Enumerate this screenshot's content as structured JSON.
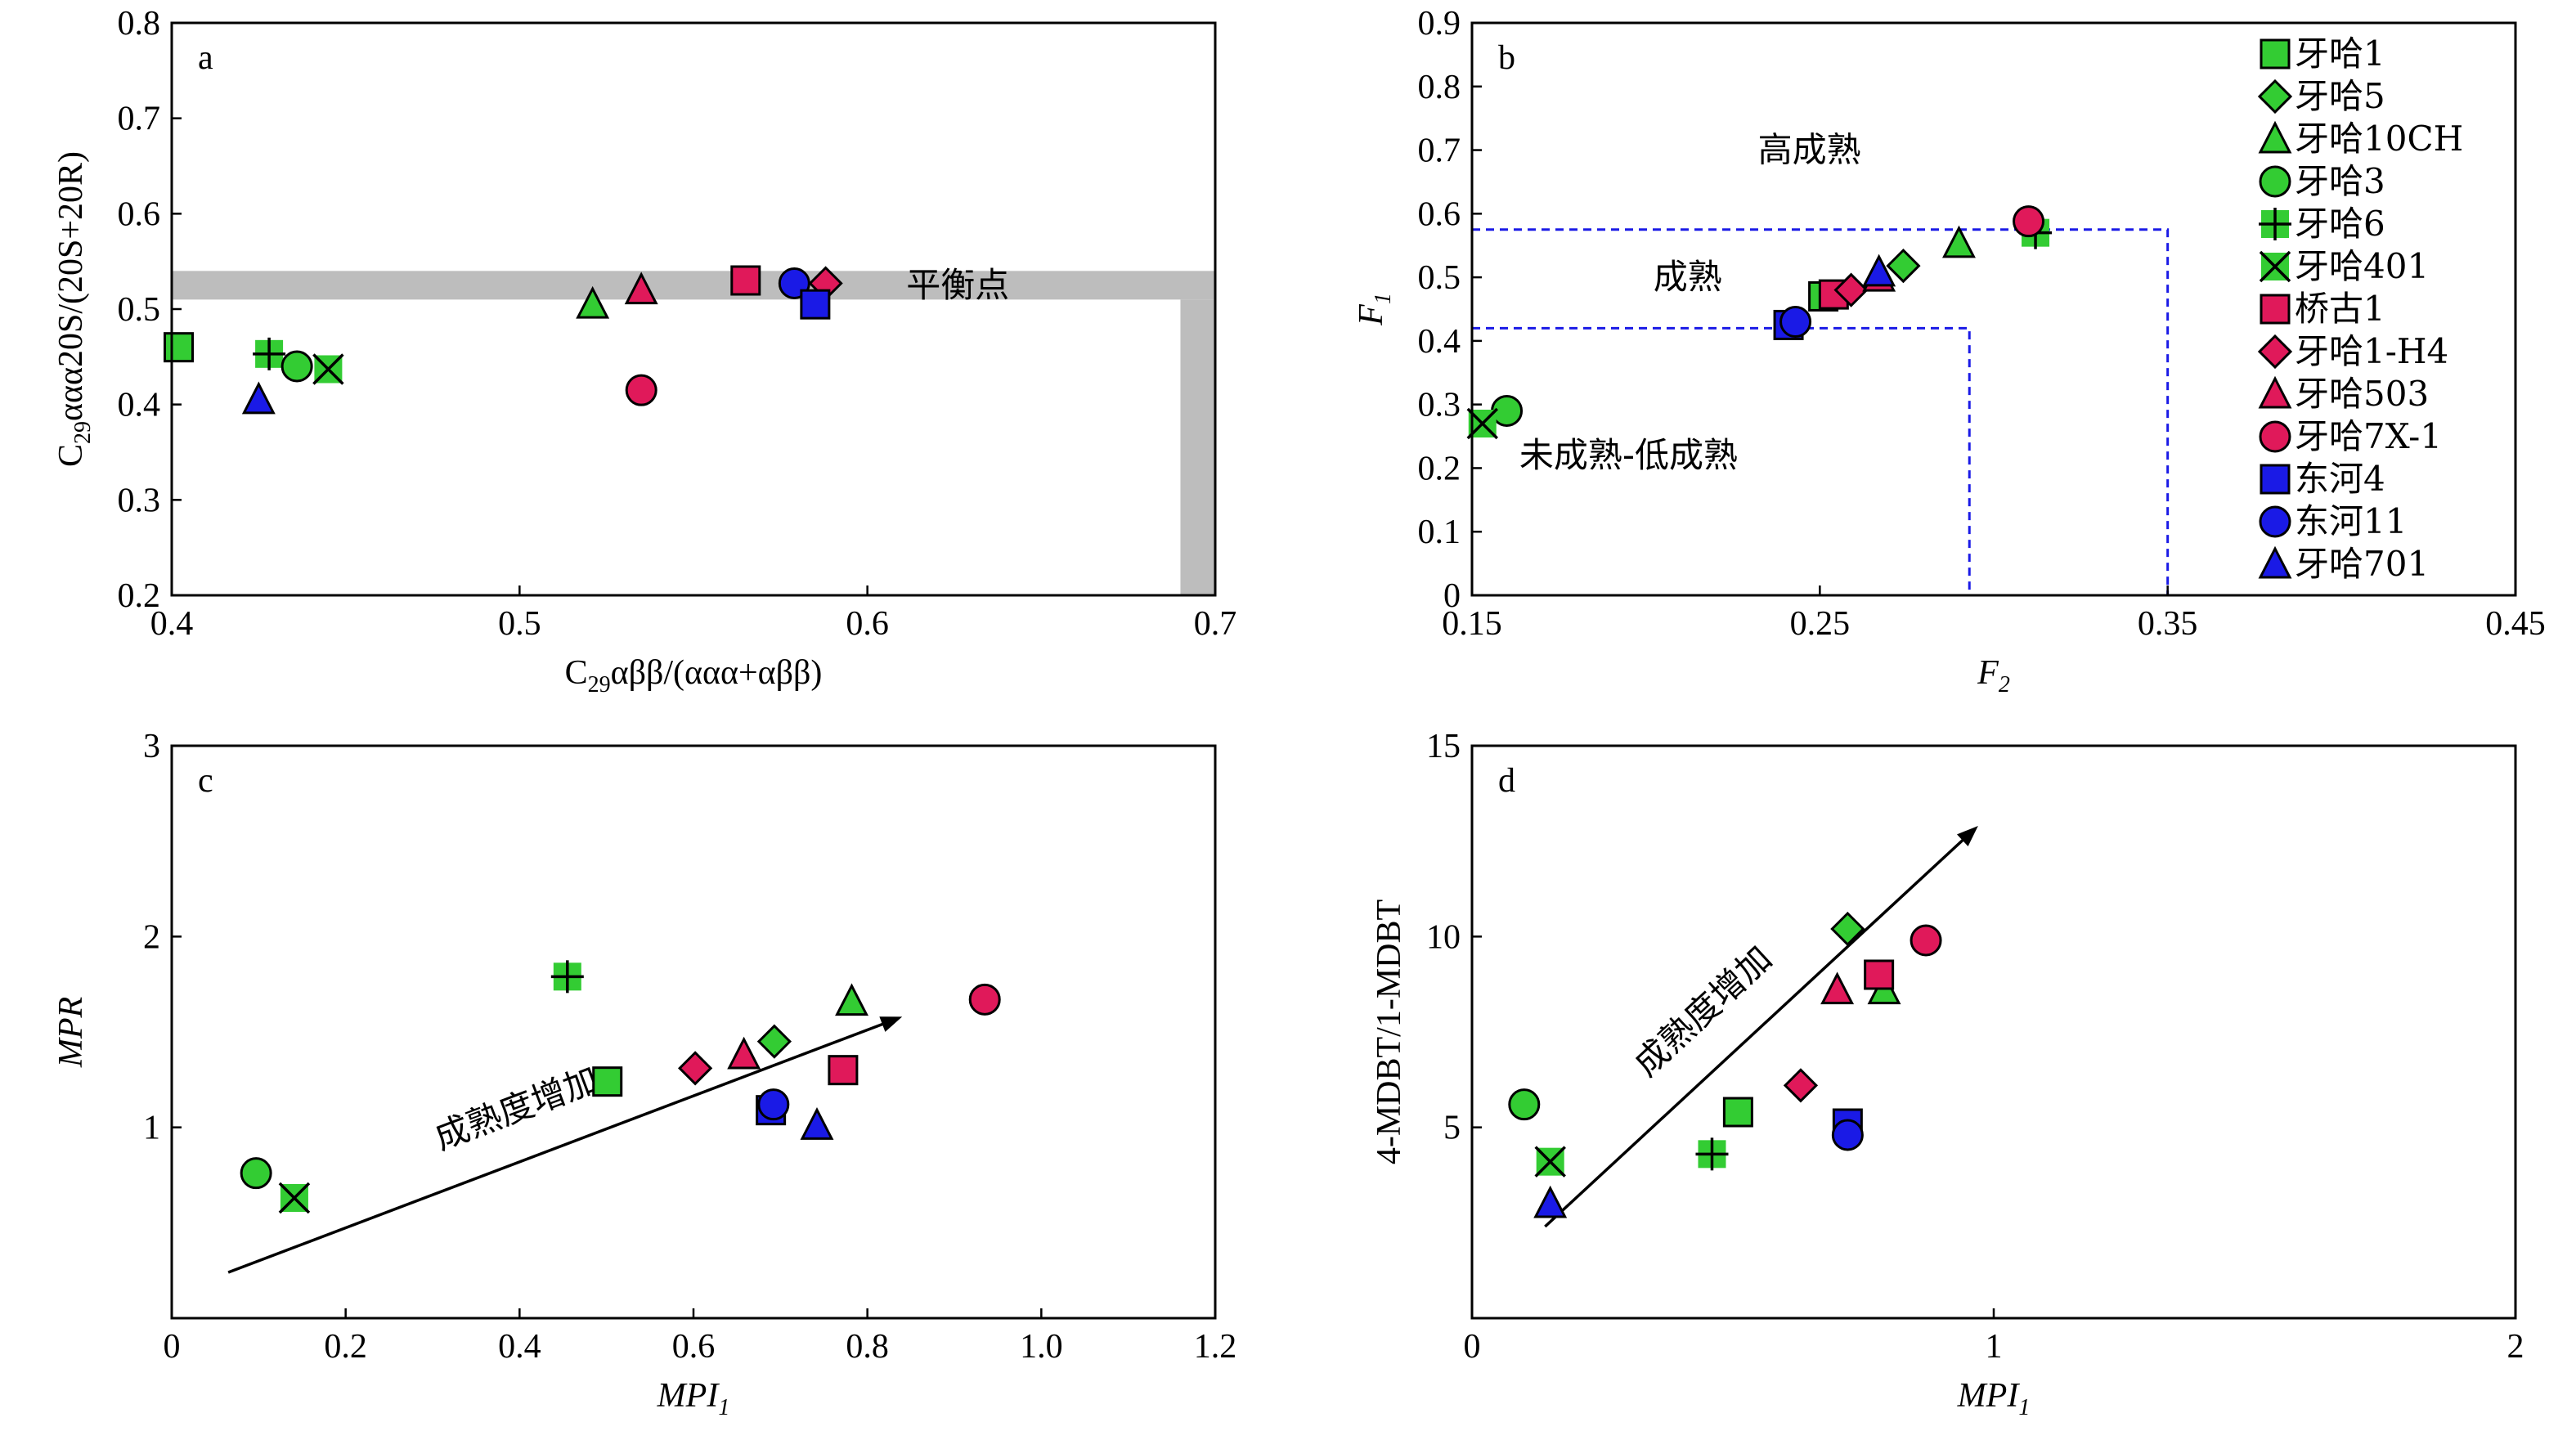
{
  "series": [
    {
      "name": "牙哈1",
      "shape": "square",
      "color": "#33cc33"
    },
    {
      "name": "牙哈5",
      "shape": "diamond",
      "color": "#33cc33"
    },
    {
      "name": "牙哈10CH",
      "shape": "triangle",
      "color": "#33cc33"
    },
    {
      "name": "牙哈3",
      "shape": "circle",
      "color": "#33cc33"
    },
    {
      "name": "牙哈6",
      "shape": "plus",
      "color": "#33cc33"
    },
    {
      "name": "牙哈401",
      "shape": "cross",
      "color": "#33cc33"
    },
    {
      "name": "桥古1",
      "shape": "square",
      "color": "#e0195a"
    },
    {
      "name": "牙哈1-H4",
      "shape": "diamond",
      "color": "#e0195a"
    },
    {
      "name": "牙哈503",
      "shape": "triangle",
      "color": "#e0195a"
    },
    {
      "name": "牙哈7X-1",
      "shape": "circle",
      "color": "#e0195a"
    },
    {
      "name": "东河4",
      "shape": "square",
      "color": "#1a1ae6"
    },
    {
      "name": "东河11",
      "shape": "circle",
      "color": "#1a1ae6"
    },
    {
      "name": "牙哈701",
      "shape": "triangle",
      "color": "#1a1ae6"
    }
  ],
  "chart_data": [
    {
      "type": "scatter",
      "letter": "a",
      "xlabel": {
        "prefix": "C",
        "sub": "29",
        "rest": "αββ/(ααα+αββ)"
      },
      "ylabel": {
        "prefix": "C",
        "sub": "29",
        "rest": "ααα20S/(20S+20R)"
      },
      "xlim": [
        0.4,
        0.7
      ],
      "ylim": [
        0.2,
        0.8
      ],
      "xticks": [
        0.4,
        0.5,
        0.6,
        0.7
      ],
      "yticks": [
        0.2,
        0.3,
        0.4,
        0.5,
        0.6,
        0.7,
        0.8
      ],
      "xtick_labels": [
        "0.4",
        "0.5",
        "0.6",
        "0.7"
      ],
      "ytick_labels": [
        "0.2",
        "0.3",
        "0.4",
        "0.5",
        "0.6",
        "0.7",
        "0.8"
      ],
      "equilibrium_band": {
        "y": [
          0.51,
          0.54
        ],
        "x": [
          0.69,
          0.7
        ],
        "label": "平衡点"
      },
      "points": [
        {
          "series": "牙哈1",
          "x": 0.402,
          "y": 0.46
        },
        {
          "series": "牙哈6",
          "x": 0.428,
          "y": 0.453
        },
        {
          "series": "牙哈3",
          "x": 0.436,
          "y": 0.44
        },
        {
          "series": "牙哈401",
          "x": 0.445,
          "y": 0.437
        },
        {
          "series": "牙哈701",
          "x": 0.425,
          "y": 0.405
        },
        {
          "series": "牙哈10CH",
          "x": 0.521,
          "y": 0.505
        },
        {
          "series": "牙哈503",
          "x": 0.535,
          "y": 0.52
        },
        {
          "series": "牙哈7X-1",
          "x": 0.535,
          "y": 0.415
        },
        {
          "series": "桥古1",
          "x": 0.565,
          "y": 0.53
        },
        {
          "series": "东河11",
          "x": 0.579,
          "y": 0.527
        },
        {
          "series": "牙哈1-H4",
          "x": 0.588,
          "y": 0.527
        },
        {
          "series": "东河4",
          "x": 0.585,
          "y": 0.505
        }
      ]
    },
    {
      "type": "scatter",
      "letter": "b",
      "xlabel": {
        "prefix": "F",
        "sub": "2",
        "rest": ""
      },
      "ylabel": {
        "prefix": "F",
        "sub": "1",
        "rest": ""
      },
      "xlim": [
        0.15,
        0.45
      ],
      "ylim": [
        0,
        0.9
      ],
      "xticks": [
        0.15,
        0.25,
        0.35,
        0.45
      ],
      "yticks": [
        0,
        0.1,
        0.2,
        0.3,
        0.4,
        0.5,
        0.6,
        0.7,
        0.8,
        0.9
      ],
      "xtick_labels": [
        "0.15",
        "0.25",
        "0.35",
        "0.45"
      ],
      "ytick_labels": [
        "0",
        "0.1",
        "0.2",
        "0.3",
        "0.4",
        "0.5",
        "0.6",
        "0.7",
        "0.8",
        "0.9"
      ],
      "zones": [
        {
          "x": 0.293,
          "y": 0.42
        },
        {
          "x": 0.35,
          "y": 0.575
        }
      ],
      "zone_labels": [
        {
          "text": "高成熟",
          "x": 0.247,
          "y": 0.7
        },
        {
          "text": "成熟",
          "x": 0.212,
          "y": 0.5
        },
        {
          "text": "未成熟-低成熟",
          "x": 0.195,
          "y": 0.22
        }
      ],
      "points": [
        {
          "series": "牙哈1",
          "x": 0.251,
          "y": 0.47
        },
        {
          "series": "牙哈5",
          "x": 0.274,
          "y": 0.518
        },
        {
          "series": "牙哈10CH",
          "x": 0.29,
          "y": 0.553
        },
        {
          "series": "牙哈3",
          "x": 0.16,
          "y": 0.29
        },
        {
          "series": "牙哈6",
          "x": 0.312,
          "y": 0.57
        },
        {
          "series": "牙哈401",
          "x": 0.153,
          "y": 0.27
        },
        {
          "series": "桥古1",
          "x": 0.254,
          "y": 0.473
        },
        {
          "series": "牙哈1-H4",
          "x": 0.259,
          "y": 0.48
        },
        {
          "series": "牙哈503",
          "x": 0.267,
          "y": 0.5
        },
        {
          "series": "牙哈7X-1",
          "x": 0.31,
          "y": 0.588
        },
        {
          "series": "东河4",
          "x": 0.241,
          "y": 0.425
        },
        {
          "series": "东河11",
          "x": 0.243,
          "y": 0.43
        },
        {
          "series": "牙哈701",
          "x": 0.267,
          "y": 0.508
        }
      ]
    },
    {
      "type": "scatter",
      "letter": "c",
      "xlabel": {
        "prefix": "MPI",
        "sub": "1",
        "rest": ""
      },
      "ylabel": {
        "prefix": "MPR",
        "sub": "",
        "rest": ""
      },
      "xlim": [
        0,
        1.2
      ],
      "ylim": [
        0,
        3
      ],
      "xticks": [
        0,
        0.2,
        0.4,
        0.6,
        0.8,
        1.0,
        1.2
      ],
      "yticks": [
        1,
        2,
        3
      ],
      "xtick_labels": [
        "0",
        "0.2",
        "0.4",
        "0.6",
        "0.8",
        "1.0",
        "1.2"
      ],
      "ytick_labels": [
        "1",
        "2",
        "3"
      ],
      "arrow": {
        "from": [
          0.065,
          0.24
        ],
        "to": [
          0.84,
          1.58
        ],
        "label": "成熟度增加"
      },
      "points": [
        {
          "series": "牙哈3",
          "x": 0.097,
          "y": 0.76
        },
        {
          "series": "牙哈401",
          "x": 0.141,
          "y": 0.63
        },
        {
          "series": "牙哈6",
          "x": 0.455,
          "y": 1.79
        },
        {
          "series": "牙哈1",
          "x": 0.501,
          "y": 1.24
        },
        {
          "series": "牙哈1-H4",
          "x": 0.602,
          "y": 1.31
        },
        {
          "series": "牙哈503",
          "x": 0.658,
          "y": 1.38
        },
        {
          "series": "牙哈5",
          "x": 0.693,
          "y": 1.45
        },
        {
          "series": "牙哈10CH",
          "x": 0.782,
          "y": 1.66
        },
        {
          "series": "东河4",
          "x": 0.689,
          "y": 1.09
        },
        {
          "series": "东河11",
          "x": 0.692,
          "y": 1.12
        },
        {
          "series": "牙哈701",
          "x": 0.742,
          "y": 1.01
        },
        {
          "series": "桥古1",
          "x": 0.772,
          "y": 1.3
        },
        {
          "series": "牙哈7X-1",
          "x": 0.935,
          "y": 1.67
        }
      ]
    },
    {
      "type": "scatter",
      "letter": "d",
      "xlabel": {
        "prefix": "MPI",
        "sub": "1",
        "rest": ""
      },
      "ylabel": {
        "prefix": "4-MDBT/1-MDBT",
        "sub": "",
        "rest": ""
      },
      "xlim": [
        0,
        2
      ],
      "ylim": [
        0,
        15
      ],
      "xticks": [
        0,
        1,
        2
      ],
      "yticks": [
        5,
        10,
        15
      ],
      "xtick_labels": [
        "0",
        "1",
        "2"
      ],
      "ytick_labels": [
        "5",
        "10",
        "15"
      ],
      "arrow": {
        "from": [
          0.14,
          2.4
        ],
        "to": [
          0.97,
          12.9
        ],
        "label": "成熟度增加"
      },
      "points": [
        {
          "series": "牙哈3",
          "x": 0.1,
          "y": 5.6
        },
        {
          "series": "牙哈401",
          "x": 0.15,
          "y": 4.1
        },
        {
          "series": "牙哈701",
          "x": 0.15,
          "y": 3.0
        },
        {
          "series": "牙哈6",
          "x": 0.46,
          "y": 4.3
        },
        {
          "series": "牙哈1",
          "x": 0.51,
          "y": 5.4
        },
        {
          "series": "牙哈1-H4",
          "x": 0.63,
          "y": 6.1
        },
        {
          "series": "牙哈503",
          "x": 0.7,
          "y": 8.6
        },
        {
          "series": "牙哈10CH",
          "x": 0.79,
          "y": 8.6
        },
        {
          "series": "牙哈5",
          "x": 0.72,
          "y": 10.2
        },
        {
          "series": "东河4",
          "x": 0.72,
          "y": 5.1
        },
        {
          "series": "东河11",
          "x": 0.72,
          "y": 4.8
        },
        {
          "series": "桥古1",
          "x": 0.78,
          "y": 9.0
        },
        {
          "series": "牙哈7X-1",
          "x": 0.87,
          "y": 9.9
        }
      ]
    }
  ]
}
